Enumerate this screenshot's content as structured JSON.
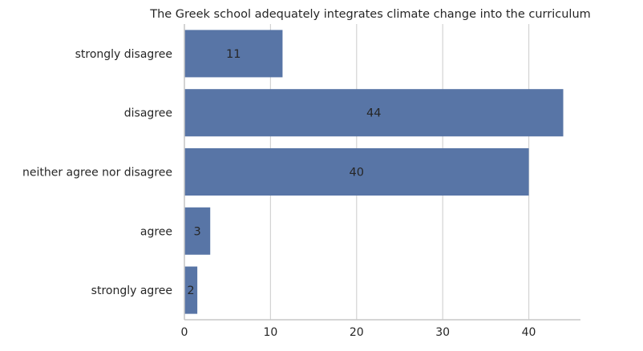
{
  "chart_data": {
    "type": "bar",
    "orientation": "horizontal",
    "title": "The Greek school adequately integrates climate change into the curriculum",
    "xlabel": "",
    "ylabel": "",
    "categories": [
      "strongly disagree",
      "disagree",
      "neither agree nor disagree",
      "agree",
      "strongly agree"
    ],
    "values": [
      11.4,
      44,
      40,
      3,
      1.5
    ],
    "data_labels": [
      "11",
      "44",
      "40",
      "3",
      "2"
    ],
    "xlim": [
      0,
      46
    ],
    "xticks": [
      0,
      10,
      20,
      30,
      40
    ],
    "grid": true,
    "colors": {
      "bar": "#5875a6",
      "grid": "#d3d3d3",
      "axis": "#c7c7c7"
    }
  }
}
